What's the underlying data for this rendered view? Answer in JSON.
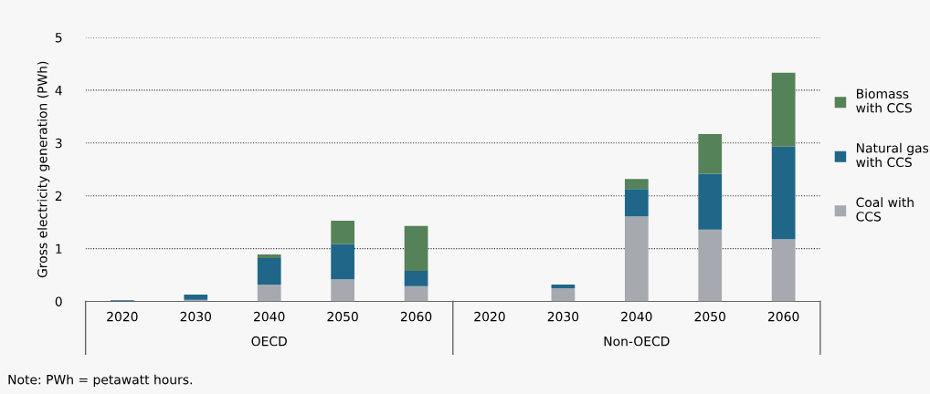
{
  "chart_data": {
    "type": "bar",
    "stacked": true,
    "ylabel": "Gross electricity generation (PWh)",
    "categories": [
      "2020",
      "2030",
      "2040",
      "2050",
      "2060",
      "2020",
      "2030",
      "2040",
      "2050",
      "2060"
    ],
    "series": [
      {
        "name": "Coal with CCS",
        "color": "#a6a9b0",
        "values": [
          0.0,
          0.03,
          0.32,
          0.42,
          0.29,
          0.0,
          0.25,
          1.61,
          1.36,
          1.18
        ]
      },
      {
        "name": "Natural gas with CCS",
        "color": "#1f6689",
        "values": [
          0.02,
          0.1,
          0.5,
          0.67,
          0.29,
          0.0,
          0.07,
          0.52,
          1.06,
          1.75
        ]
      },
      {
        "name": "Biomass with CCS",
        "color": "#568259",
        "values": [
          0.0,
          0.0,
          0.07,
          0.44,
          0.85,
          0.0,
          0.0,
          0.19,
          0.75,
          1.4
        ]
      }
    ],
    "ylim": [
      0,
      5
    ],
    "yticks": [
      0,
      1,
      2,
      3,
      4,
      5
    ],
    "grid": "y",
    "legend": "right",
    "annotations": [
      "OECD",
      "Non-OECD",
      "Note: PWh = petawatt hours."
    ]
  }
}
